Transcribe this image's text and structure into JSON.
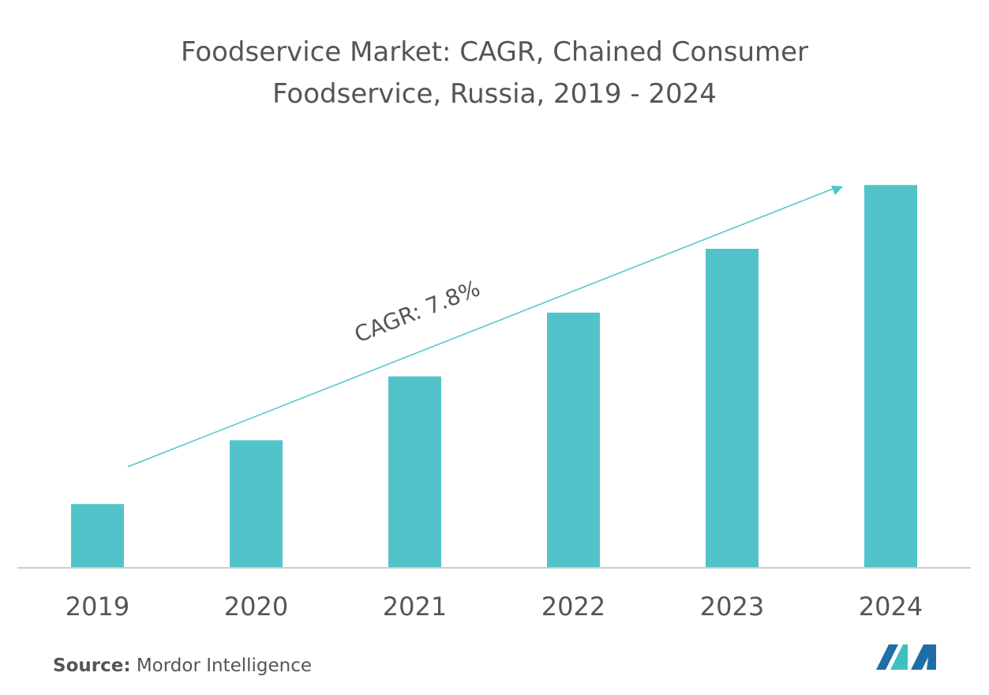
{
  "chart_data": {
    "type": "bar",
    "title_line1": "Foodservice Market: CAGR, Chained Consumer",
    "title_line2": "Foodservice, Russia, 2019 - 2024",
    "categories": [
      "2019",
      "2020",
      "2021",
      "2022",
      "2023",
      "2024"
    ],
    "values": [
      1,
      2,
      3,
      4,
      5,
      6
    ],
    "ylim": [
      0,
      6.3
    ],
    "annotation": "CAGR: 7.8%",
    "bar_color": "#52c4c9",
    "arrow_color": "#52c4c9",
    "axis_color": "#cccccc",
    "grid": false
  },
  "source": {
    "label": "Source:",
    "text": "Mordor Intelligence"
  },
  "logo": {
    "icon": "mordor-intelligence-logo",
    "colors": [
      "#1e6fa8",
      "#3fbfc2"
    ]
  }
}
